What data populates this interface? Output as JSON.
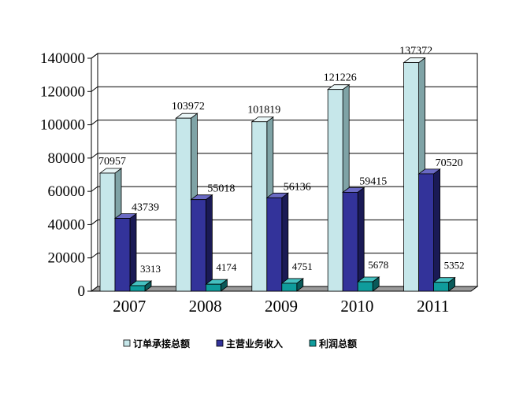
{
  "chart_data": {
    "type": "bar",
    "categories": [
      "2007",
      "2008",
      "2009",
      "2010",
      "2011"
    ],
    "series": [
      {
        "name": "订单承接总额",
        "values": [
          70957,
          103972,
          101819,
          121226,
          137372
        ],
        "color": "#c6e7ea",
        "side": "#7fa3a6",
        "top": "#e9f6f7"
      },
      {
        "name": "主营业务收入",
        "values": [
          43739,
          55018,
          56136,
          59415,
          70520
        ],
        "color": "#33339a",
        "side": "#1a1a55",
        "top": "#6a6ac4"
      },
      {
        "name": "利润总额",
        "values": [
          3313,
          4174,
          4751,
          5678,
          5352
        ],
        "color": "#0f9c9c",
        "side": "#0a5a5a",
        "top": "#45c1c1"
      }
    ],
    "yticks": [
      "0",
      "20000",
      "40000",
      "60000",
      "80000",
      "100000",
      "120000",
      "140000"
    ],
    "ylim": [
      0,
      140000
    ],
    "grid": true,
    "legend_position": "bottom"
  }
}
